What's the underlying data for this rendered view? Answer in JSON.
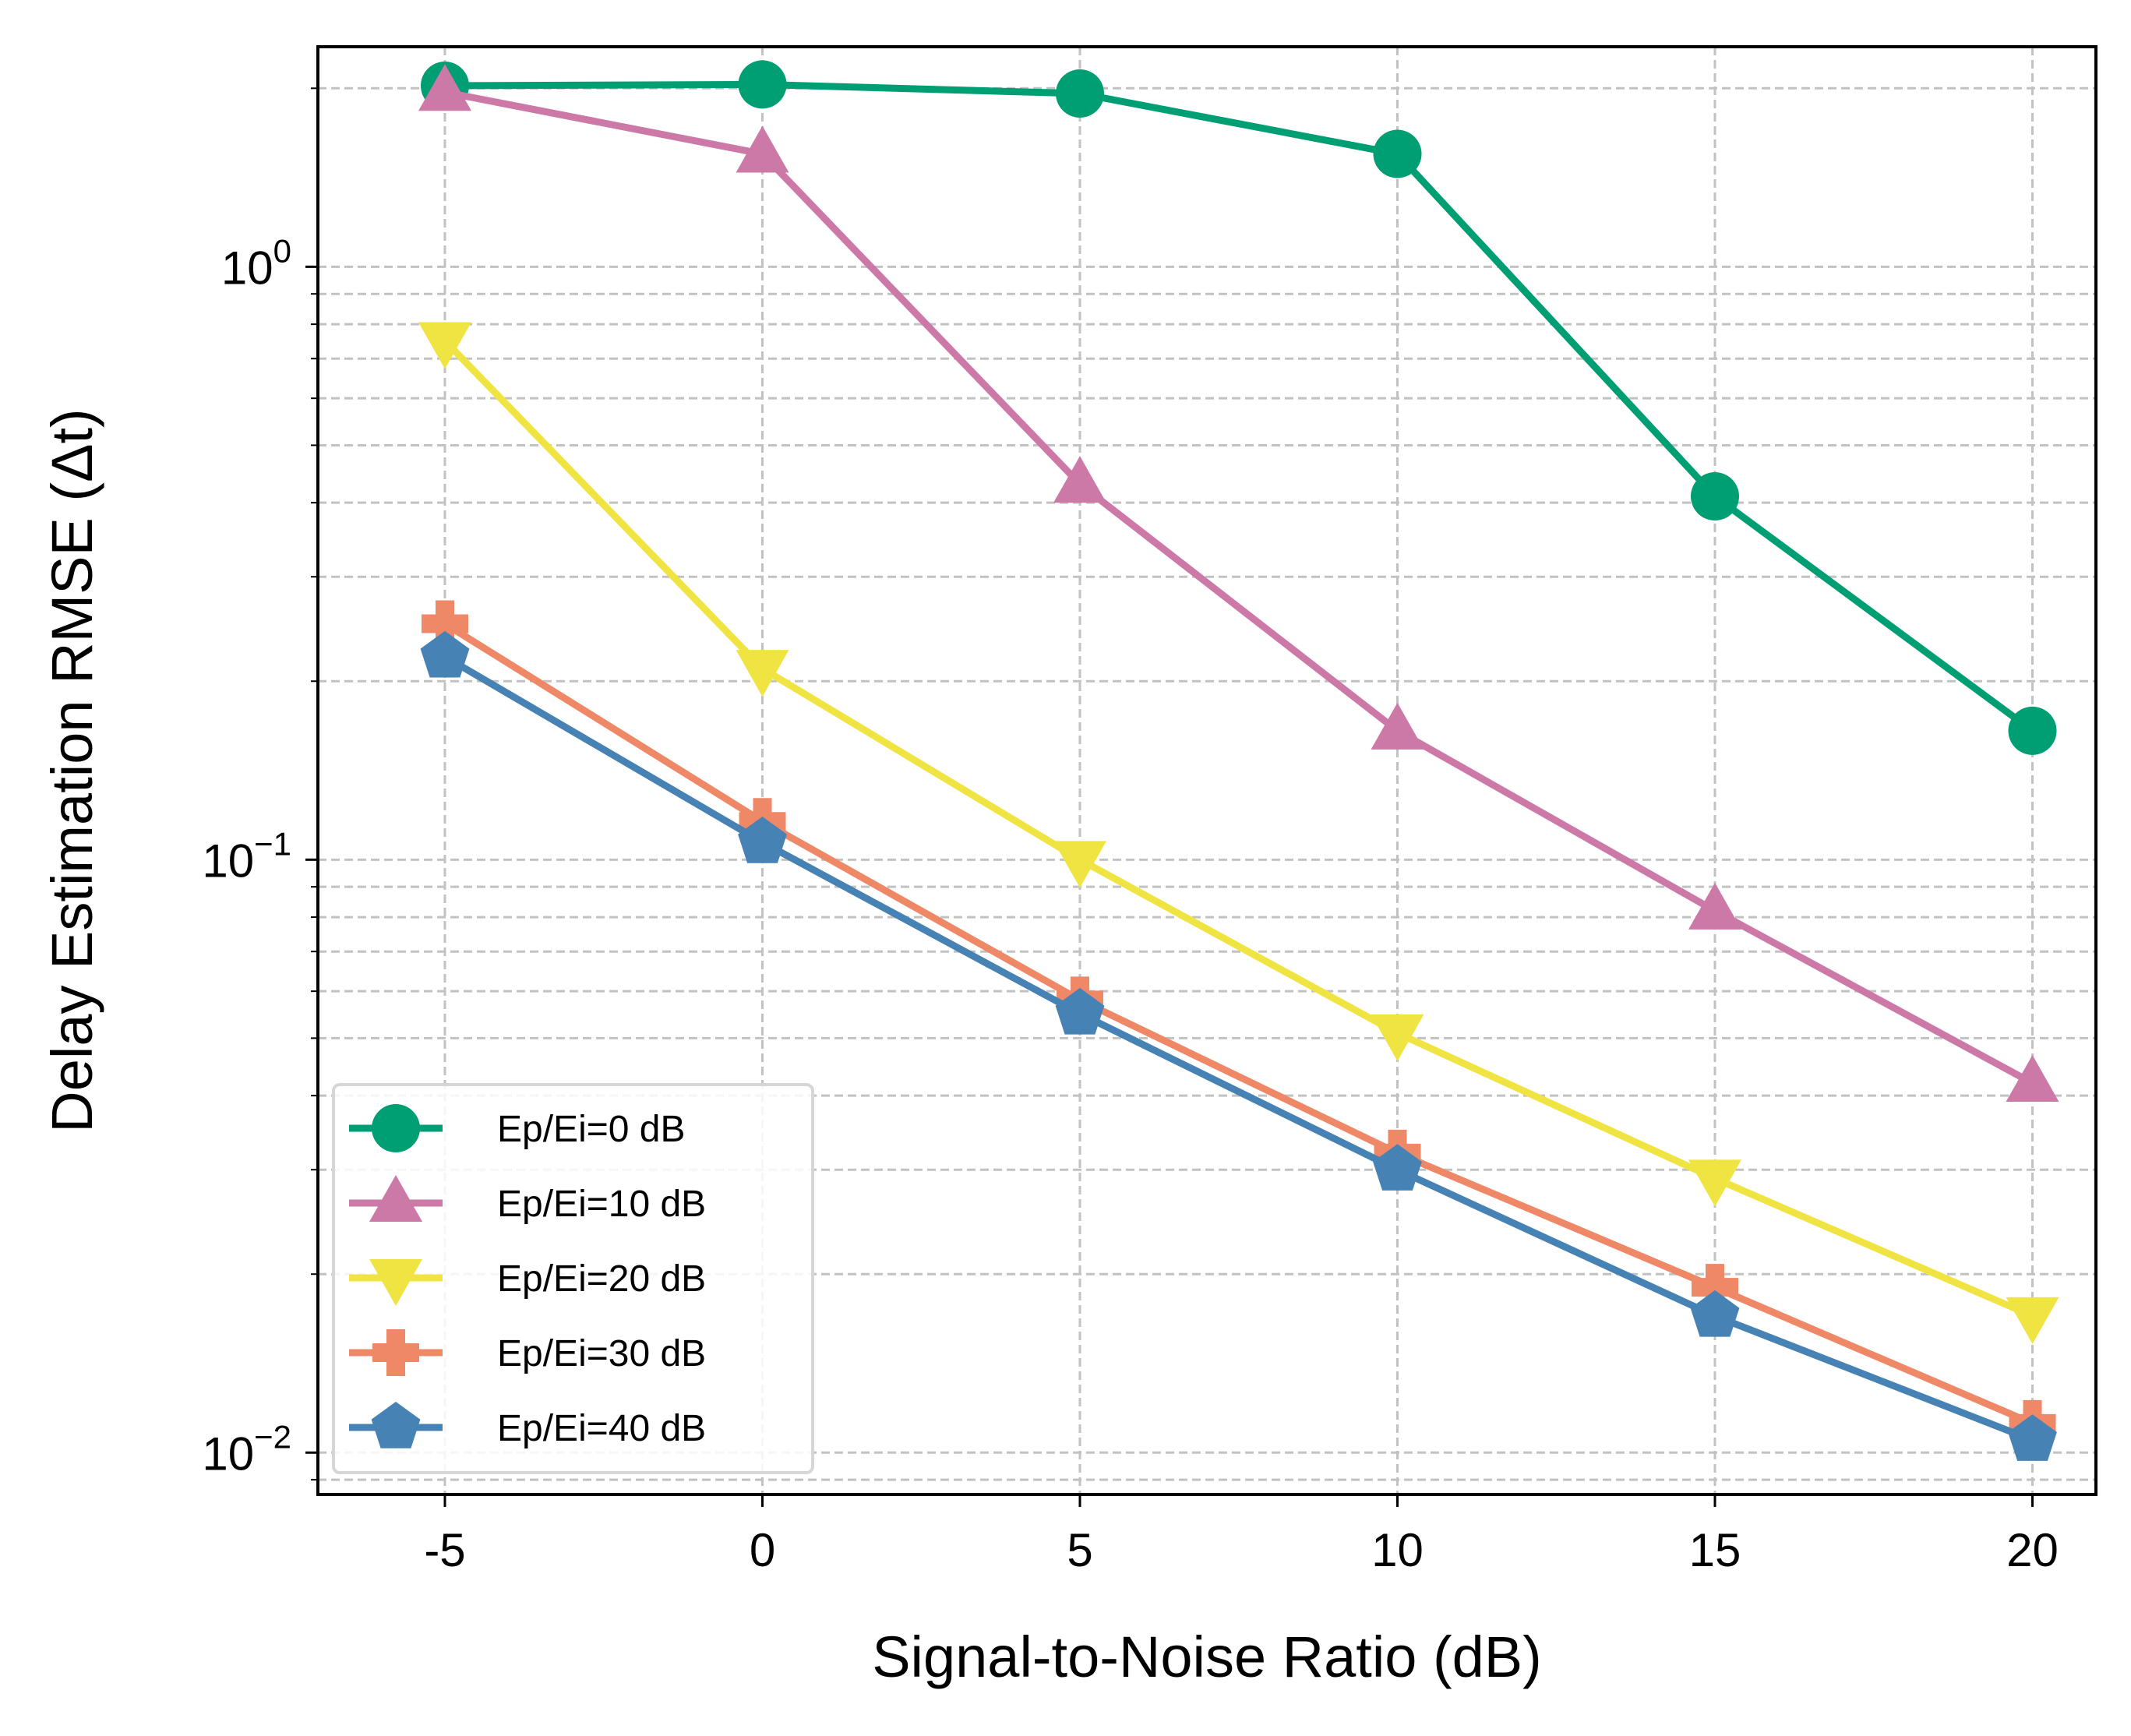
{
  "chart_data": {
    "type": "line",
    "title": "",
    "xlabel": "Signal-to-Noise Ratio (dB)",
    "ylabel": "Delay Estimation RMSE (Δt)",
    "yscale": "log",
    "xlim": [
      -7,
      21
    ],
    "ylim": [
      0.0085,
      2.35
    ],
    "grid": true,
    "legend_position": "lower-left",
    "x": [
      -5,
      0,
      5,
      10,
      15,
      20
    ],
    "x_tick_labels": [
      "-5",
      "0",
      "5",
      "10",
      "15",
      "20"
    ],
    "y_ticks": [
      {
        "value": 1,
        "base": "10",
        "exp": "0"
      },
      {
        "value": 0.1,
        "base": "10",
        "exp": "−1"
      },
      {
        "value": 0.01,
        "base": "10",
        "exp": "−2"
      }
    ],
    "series": [
      {
        "name": "Ep/Ei=0 dB",
        "color": "#009E73",
        "marker": "circle",
        "values": [
          2.02,
          2.03,
          1.96,
          1.55,
          0.41,
          0.165
        ]
      },
      {
        "name": "Ep/Ei=10 dB",
        "color": "#CC79A7",
        "marker": "triangle-up",
        "values": [
          1.97,
          1.55,
          0.43,
          0.165,
          0.082,
          0.042
        ]
      },
      {
        "name": "Ep/Ei=20 dB",
        "color": "#F0E442",
        "marker": "triangle-down",
        "values": [
          0.75,
          0.21,
          0.1,
          0.051,
          0.029,
          0.017
        ]
      },
      {
        "name": "Ep/Ei=30 dB",
        "color": "#EE8866",
        "marker": "plus",
        "values": [
          0.25,
          0.116,
          0.058,
          0.032,
          0.019,
          0.0112
        ]
      },
      {
        "name": "Ep/Ei=40 dB",
        "color": "#4682B4",
        "marker": "pentagon",
        "values": [
          0.22,
          0.107,
          0.055,
          0.03,
          0.017,
          0.0105
        ]
      }
    ]
  }
}
